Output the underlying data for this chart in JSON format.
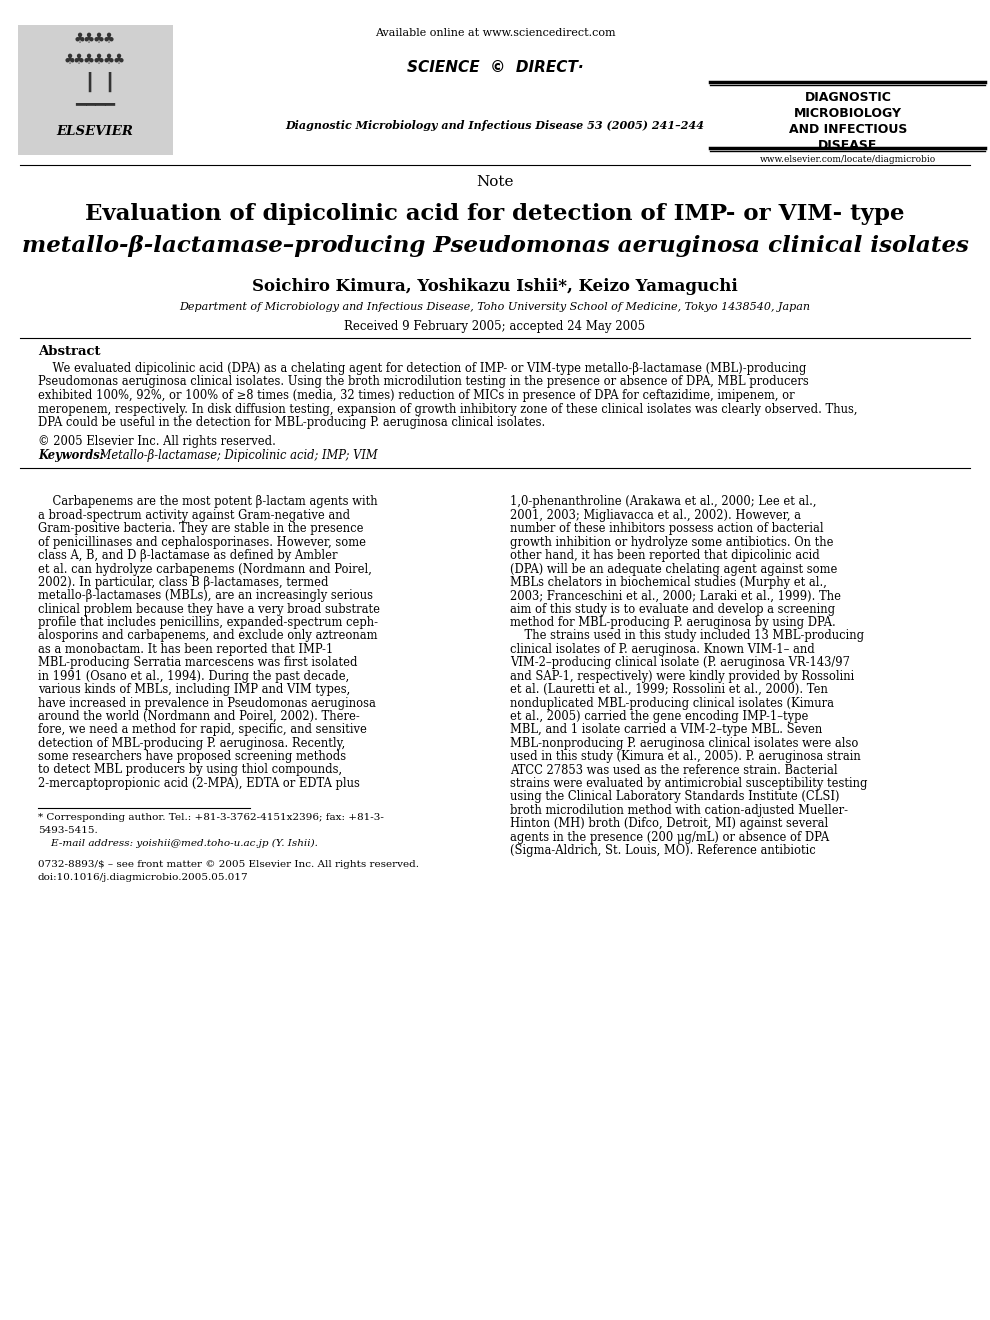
{
  "bg_color": "#ffffff",
  "page_width": 9.9,
  "page_height": 13.2,
  "header_available_online": "Available online at www.sciencedirect.com",
  "journal_name": "Diagnostic Microbiology and Infectious Disease 53 (2005) 241–244",
  "journal_right_title_lines": [
    "DIAGNOSTIC",
    "MICROBIOLOGY",
    "AND INFECTIOUS",
    "DISEASE"
  ],
  "journal_url": "www.elsevier.com/locate/diagmicrobio",
  "section_label": "Note",
  "article_title_line1": "Evaluation of dipicolinic acid for detection of IMP- or VIM- type",
  "article_title_line2_part1": "metallo-β-lactamase–producing ",
  "article_title_line2_part2": "Pseudomonas aeruginosa",
  "article_title_line2_part3": " clinical isolates",
  "authors": "Soichiro Kimura, Yoshikazu Ishii*, Keizo Yamaguchi",
  "affiliation": "Department of Microbiology and Infectious Disease, Toho University School of Medicine, Tokyo 1438540, Japan",
  "received": "Received 9 February 2005; accepted 24 May 2005",
  "abstract_title": "Abstract",
  "abstract_line1": "    We evaluated dipicolinic acid (DPA) as a chelating agent for detection of IMP- or VIM-type metallo-β-lactamase (MBL)-producing",
  "abstract_line2": "Pseudomonas aeruginosa clinical isolates. Using the broth microdilution testing in the presence or absence of DPA, MBL producers",
  "abstract_line3": "exhibited 100%, 92%, or 100% of ≥8 times (media, 32 times) reduction of MICs in presence of DPA for ceftazidime, imipenem, or",
  "abstract_line4": "meropenem, respectively. In disk diffusion testing, expansion of growth inhibitory zone of these clinical isolates was clearly observed. Thus,",
  "abstract_line5": "DPA could be useful in the detection for MBL-producing P. aeruginosa clinical isolates.",
  "abstract_copyright": "© 2005 Elsevier Inc. All rights reserved.",
  "keywords_label": "Keywords:",
  "keywords_text": " Metallo-β-lactamase; Dipicolinic acid; IMP; VIM",
  "col1_lines": [
    "    Carbapenems are the most potent β-lactam agents with",
    "a broad-spectrum activity against Gram-negative and",
    "Gram-positive bacteria. They are stable in the presence",
    "of penicillinases and cephalosporinases. However, some",
    "class A, B, and D β-lactamase as defined by Ambler",
    "et al. can hydrolyze carbapenems (Nordmann and Poirel,",
    "2002). In particular, class B β-lactamases, termed",
    "metallo-β-lactamases (MBLs), are an increasingly serious",
    "clinical problem because they have a very broad substrate",
    "profile that includes penicillins, expanded-spectrum ceph-",
    "alosporins and carbapenems, and exclude only aztreonam",
    "as a monobactam. It has been reported that IMP-1",
    "MBL-producing Serratia marcescens was first isolated",
    "in 1991 (Osano et al., 1994). During the past decade,",
    "various kinds of MBLs, including IMP and VIM types,",
    "have increased in prevalence in Pseudomonas aeruginosa",
    "around the world (Nordmann and Poirel, 2002). There-",
    "fore, we need a method for rapid, specific, and sensitive",
    "detection of MBL-producing P. aeruginosa. Recently,",
    "some researchers have proposed screening methods",
    "to detect MBL producers by using thiol compounds,",
    "2-mercaptopropionic acid (2-MPA), EDTA or EDTA plus"
  ],
  "col2_lines": [
    "1,0-phenanthroline (Arakawa et al., 2000; Lee et al.,",
    "2001, 2003; Migliavacca et al., 2002). However, a",
    "number of these inhibitors possess action of bacterial",
    "growth inhibition or hydrolyze some antibiotics. On the",
    "other hand, it has been reported that dipicolinic acid",
    "(DPA) will be an adequate chelating agent against some",
    "MBLs chelators in biochemical studies (Murphy et al.,",
    "2003; Franceschini et al., 2000; Laraki et al., 1999). The",
    "aim of this study is to evaluate and develop a screening",
    "method for MBL-producing P. aeruginosa by using DPA.",
    "    The strains used in this study included 13 MBL-producing",
    "clinical isolates of P. aeruginosa. Known VIM-1– and",
    "VIM-2–producing clinical isolate (P. aeruginosa VR-143/97",
    "and SAP-1, respectively) were kindly provided by Rossolini",
    "et al. (Lauretti et al., 1999; Rossolini et al., 2000). Ten",
    "nonduplicated MBL-producing clinical isolates (Kimura",
    "et al., 2005) carried the gene encoding IMP-1–type",
    "MBL, and 1 isolate carried a VIM-2–type MBL. Seven",
    "MBL-nonproducing P. aeruginosa clinical isolates were also",
    "used in this study (Kimura et al., 2005). P. aeruginosa strain",
    "ATCC 27853 was used as the reference strain. Bacterial",
    "strains were evaluated by antimicrobial susceptibility testing",
    "using the Clinical Laboratory Standards Institute (CLSI)",
    "broth microdilution method with cation-adjusted Mueller-",
    "Hinton (MH) broth (Difco, Detroit, MI) against several",
    "agents in the presence (200 μg/mL) or absence of DPA",
    "(Sigma-Aldrich, St. Louis, MO). Reference antibiotic"
  ],
  "footnote_star_line1": "* Corresponding author. Tel.: +81-3-3762-4151x2396; fax: +81-3-",
  "footnote_star_line2": "5493-5415.",
  "footnote_email": "    E-mail address: yoishii@med.toho-u.ac.jp (Y. Ishii).",
  "footnote_bottom1": "0732-8893/$ – see front matter © 2005 Elsevier Inc. All rights reserved.",
  "footnote_bottom2": "doi:10.1016/j.diagmicrobio.2005.05.017"
}
